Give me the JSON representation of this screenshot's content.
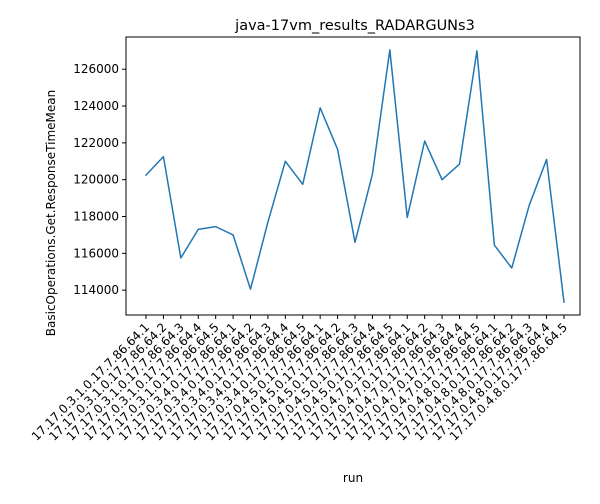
{
  "chart_data": {
    "type": "line",
    "title": "java-17vm_results_RADARGUNs3",
    "xlabel": "run",
    "ylabel": "BasicOperations.Get.ResponseTimeMean",
    "categories": [
      "17.17.0.3.1.0.17.7.86.64.1",
      "17.17.0.3.1.0.17.7.86.64.2",
      "17.17.0.3.1.0.17.7.86.64.3",
      "17.17.0.3.1.0.17.7.86.64.4",
      "17.17.0.3.1.0.17.7.86.64.5",
      "17.17.0.3.4.0.17.7.86.64.1",
      "17.17.0.3.4.0.17.7.86.64.2",
      "17.17.0.3.4.0.17.7.86.64.3",
      "17.17.0.3.4.0.17.7.86.64.4",
      "17.17.0.3.4.0.17.7.86.64.5",
      "17.17.0.4.5.0.17.7.86.64.1",
      "17.17.0.4.5.0.17.7.86.64.2",
      "17.17.0.4.5.0.17.7.86.64.3",
      "17.17.0.4.5.0.17.7.86.64.4",
      "17.17.0.4.5.0.17.7.86.64.5",
      "17.17.0.4.7.0.17.7.86.64.1",
      "17.17.0.4.7.0.17.7.86.64.2",
      "17.17.0.4.7.0.17.7.86.64.3",
      "17.17.0.4.7.0.17.7.86.64.4",
      "17.17.0.4.7.0.17.7.86.64.5",
      "17.17.0.4.8.0.17.7.86.64.1",
      "17.17.0.4.8.0.17.7.86.64.2",
      "17.17.0.4.8.0.17.7.86.64.3",
      "17.17.0.4.8.0.17.7.86.64.4",
      "17.17.0.4.8.0.17.7.86.64.5"
    ],
    "series": [
      {
        "name": "",
        "color": "#1f77b4",
        "values": [
          120250,
          121250,
          115750,
          117300,
          117450,
          117000,
          114050,
          117700,
          121000,
          119750,
          123900,
          121650,
          116600,
          120300,
          127050,
          117950,
          122100,
          120000,
          120850,
          127000,
          116450,
          115200,
          118600,
          121100,
          113350
        ]
      }
    ],
    "ylim": [
      112650,
      127750
    ],
    "yticks": [
      114000,
      116000,
      118000,
      120000,
      122000,
      124000,
      126000
    ],
    "grid": false,
    "legend": "none"
  }
}
